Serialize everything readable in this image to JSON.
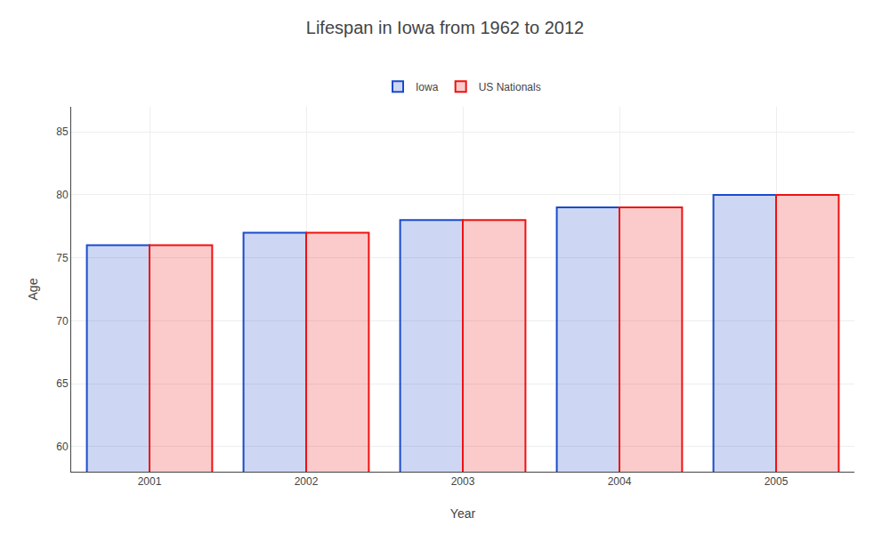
{
  "chart_data": {
    "type": "bar",
    "title": "Lifespan in Iowa from 1962 to 2012",
    "x_label": "Year",
    "y_label": "Age",
    "categories": [
      "2001",
      "2002",
      "2003",
      "2004",
      "2005"
    ],
    "series": [
      {
        "name": "Iowa",
        "color": "#1a4bcc",
        "values": [
          76,
          77,
          78,
          79,
          80
        ]
      },
      {
        "name": "US Nationals",
        "color": "#ee1111",
        "values": [
          76,
          77,
          78,
          79,
          80
        ]
      }
    ],
    "ylim": [
      58,
      87
    ],
    "yticks": [
      60,
      65,
      70,
      75,
      80,
      85
    ],
    "grid": true,
    "legend": "top"
  }
}
